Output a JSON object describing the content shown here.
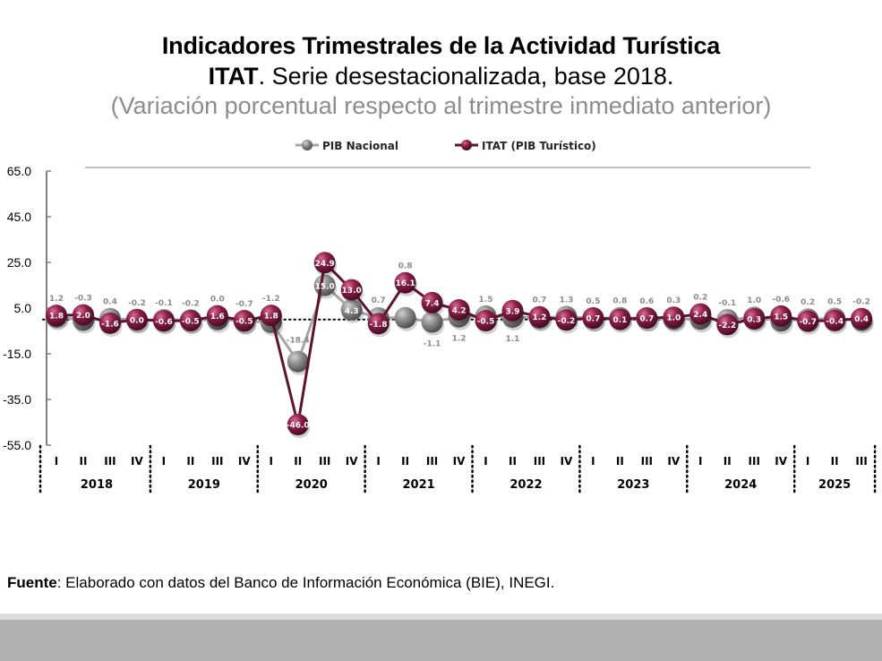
{
  "header": {
    "title": "Indicadores Trimestrales de la Actividad Turística",
    "subtitle_bold": "ITAT",
    "subtitle_rest": ". Serie desestacionalizada, base 2018.",
    "subtitle2": "(Variación porcentual respecto al trimestre inmediato anterior)"
  },
  "footer": {
    "source_label": "Fuente",
    "source_text": ": Elaborado con datos del Banco de Información Económica (BIE), INEGI."
  },
  "colors": {
    "itat": "#8b1e47",
    "itat_line": "#5c1430",
    "pib": "#8a8a8a",
    "pib_line": "#a6a6a6"
  },
  "chart_data": {
    "type": "line",
    "title": "Indicadores Trimestrales de la Actividad Turística",
    "xlabel": "",
    "ylabel": "",
    "ylim": [
      -55,
      65
    ],
    "yticks": [
      65.0,
      45.0,
      25.0,
      5.0,
      -15.0,
      -35.0,
      -55.0
    ],
    "grid": false,
    "legend_position": "top-center",
    "years": [
      {
        "label": "2018",
        "quarters": [
          "I",
          "II",
          "III",
          "IV"
        ]
      },
      {
        "label": "2019",
        "quarters": [
          "I",
          "II",
          "III",
          "IV"
        ]
      },
      {
        "label": "2020",
        "quarters": [
          "I",
          "II",
          "III",
          "IV"
        ]
      },
      {
        "label": "2021",
        "quarters": [
          "I",
          "II",
          "III",
          "IV"
        ]
      },
      {
        "label": "2022",
        "quarters": [
          "I",
          "II",
          "III",
          "IV"
        ]
      },
      {
        "label": "2023",
        "quarters": [
          "I",
          "II",
          "III",
          "IV"
        ]
      },
      {
        "label": "2024",
        "quarters": [
          "I",
          "II",
          "III",
          "IV"
        ]
      },
      {
        "label": "2025",
        "quarters": [
          "I",
          "II",
          "III"
        ]
      }
    ],
    "x": [
      "2018-I",
      "2018-II",
      "2018-III",
      "2018-IV",
      "2019-I",
      "2019-II",
      "2019-III",
      "2019-IV",
      "2020-I",
      "2020-II",
      "2020-III",
      "2020-IV",
      "2021-I",
      "2021-II",
      "2021-III",
      "2021-IV",
      "2022-I",
      "2022-II",
      "2022-III",
      "2022-IV",
      "2023-I",
      "2023-II",
      "2023-III",
      "2023-IV",
      "2024-I",
      "2024-II",
      "2024-III",
      "2024-IV",
      "2025-I",
      "2025-II",
      "2025-III"
    ],
    "series": [
      {
        "name": "PIB Nacional",
        "values": [
          1.2,
          -0.3,
          0.4,
          -0.2,
          -0.1,
          -0.2,
          0.0,
          -0.7,
          -1.2,
          -18.4,
          15.0,
          4.3,
          0.7,
          0.8,
          -1.1,
          1.2,
          1.5,
          1.1,
          0.7,
          1.3,
          0.5,
          0.8,
          0.6,
          0.3,
          0.2,
          -0.1,
          1.0,
          -0.6,
          0.2,
          0.5,
          -0.2
        ]
      },
      {
        "name": "ITAT (PIB Turístico)",
        "values": [
          1.8,
          2.0,
          -1.6,
          0.0,
          -0.6,
          -0.5,
          1.6,
          -0.5,
          1.8,
          -46.0,
          24.9,
          13.0,
          -1.8,
          16.1,
          7.4,
          4.2,
          -0.5,
          3.9,
          1.2,
          -0.2,
          0.7,
          0.1,
          0.7,
          1.0,
          2.4,
          -2.2,
          0.3,
          1.5,
          -0.7,
          -0.4,
          0.4
        ]
      }
    ]
  }
}
